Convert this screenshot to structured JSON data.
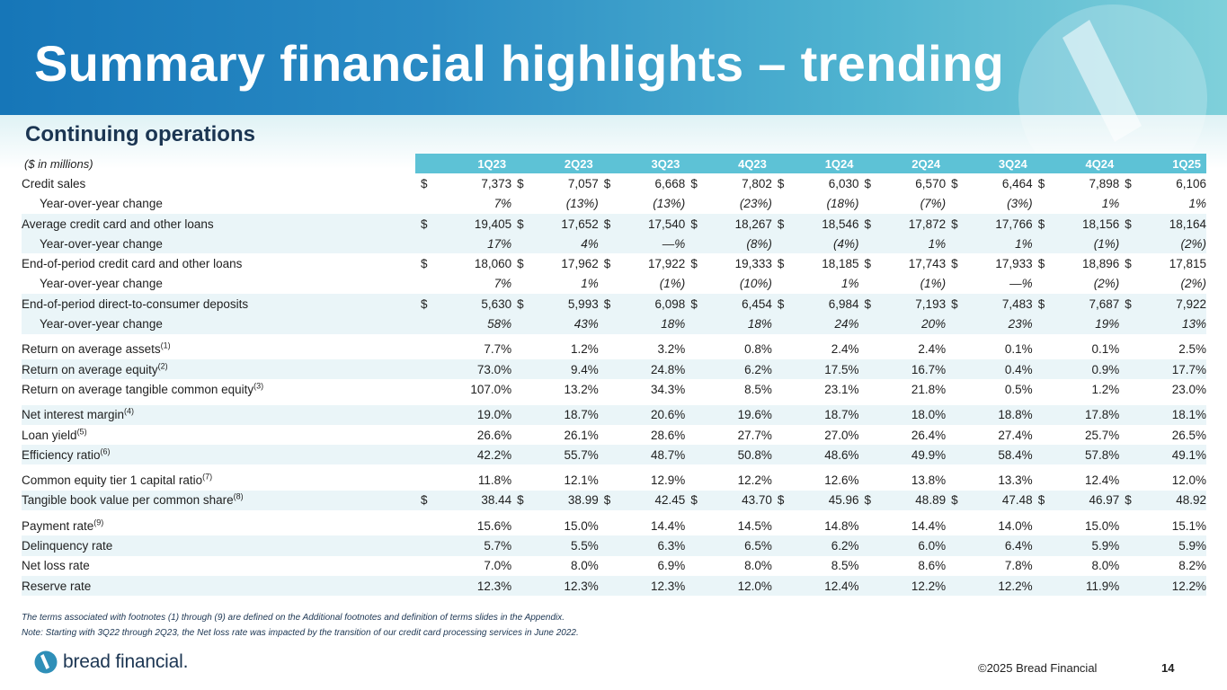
{
  "title": "Summary financial highlights – trending",
  "section": "Continuing operations",
  "units": "($ in millions)",
  "columns": [
    "1Q23",
    "2Q23",
    "3Q23",
    "4Q23",
    "1Q24",
    "2Q24",
    "3Q24",
    "4Q24",
    "1Q25"
  ],
  "rows": [
    {
      "label": "Credit sales",
      "sup": "",
      "sub": false,
      "shade": false,
      "dollar": true,
      "italic": false,
      "values": [
        "7,373",
        "7,057",
        "6,668",
        "7,802",
        "6,030",
        "6,570",
        "6,464",
        "7,898",
        "6,106"
      ]
    },
    {
      "label": "Year-over-year change",
      "sup": "",
      "sub": true,
      "shade": false,
      "dollar": false,
      "italic": true,
      "values": [
        "7%",
        "(13%)",
        "(13%)",
        "(23%)",
        "(18%)",
        "(7%)",
        "(3%)",
        "1%",
        "1%"
      ]
    },
    {
      "label": "Average credit card and other loans",
      "sup": "",
      "sub": false,
      "shade": true,
      "dollar": true,
      "italic": false,
      "values": [
        "19,405",
        "17,652",
        "17,540",
        "18,267",
        "18,546",
        "17,872",
        "17,766",
        "18,156",
        "18,164"
      ]
    },
    {
      "label": "Year-over-year change",
      "sup": "",
      "sub": true,
      "shade": true,
      "dollar": false,
      "italic": true,
      "values": [
        "17%",
        "4%",
        "—%",
        "(8%)",
        "(4%)",
        "1%",
        "1%",
        "(1%)",
        "(2%)"
      ]
    },
    {
      "label": "End-of-period credit card and other loans",
      "sup": "",
      "sub": false,
      "shade": false,
      "dollar": true,
      "italic": false,
      "values": [
        "18,060",
        "17,962",
        "17,922",
        "19,333",
        "18,185",
        "17,743",
        "17,933",
        "18,896",
        "17,815"
      ]
    },
    {
      "label": "Year-over-year change",
      "sup": "",
      "sub": true,
      "shade": false,
      "dollar": false,
      "italic": true,
      "values": [
        "7%",
        "1%",
        "(1%)",
        "(10%)",
        "1%",
        "(1%)",
        "—%",
        "(2%)",
        "(2%)"
      ]
    },
    {
      "label": "End-of-period direct-to-consumer deposits",
      "sup": "",
      "sub": false,
      "shade": true,
      "dollar": true,
      "italic": false,
      "values": [
        "5,630",
        "5,993",
        "6,098",
        "6,454",
        "6,984",
        "7,193",
        "7,483",
        "7,687",
        "7,922"
      ]
    },
    {
      "label": "Year-over-year change",
      "sup": "",
      "sub": true,
      "shade": true,
      "dollar": false,
      "italic": true,
      "values": [
        "58%",
        "43%",
        "18%",
        "18%",
        "24%",
        "20%",
        "23%",
        "19%",
        "13%"
      ]
    },
    {
      "gap": true
    },
    {
      "label": "Return on average assets",
      "sup": "(1)",
      "sub": false,
      "shade": false,
      "dollar": false,
      "italic": false,
      "values": [
        "7.7%",
        "1.2%",
        "3.2%",
        "0.8%",
        "2.4%",
        "2.4%",
        "0.1%",
        "0.1%",
        "2.5%"
      ]
    },
    {
      "label": "Return on average equity",
      "sup": "(2)",
      "sub": false,
      "shade": true,
      "dollar": false,
      "italic": false,
      "values": [
        "73.0%",
        "9.4%",
        "24.8%",
        "6.2%",
        "17.5%",
        "16.7%",
        "0.4%",
        "0.9%",
        "17.7%"
      ]
    },
    {
      "label": "Return on average tangible common equity",
      "sup": "(3)",
      "sub": false,
      "shade": false,
      "dollar": false,
      "italic": false,
      "values": [
        "107.0%",
        "13.2%",
        "34.3%",
        "8.5%",
        "23.1%",
        "21.8%",
        "0.5%",
        "1.2%",
        "23.0%"
      ]
    },
    {
      "gap": true
    },
    {
      "label": "Net interest margin",
      "sup": "(4)",
      "sub": false,
      "shade": true,
      "dollar": false,
      "italic": false,
      "values": [
        "19.0%",
        "18.7%",
        "20.6%",
        "19.6%",
        "18.7%",
        "18.0%",
        "18.8%",
        "17.8%",
        "18.1%"
      ]
    },
    {
      "label": "Loan yield",
      "sup": "(5)",
      "sub": false,
      "shade": false,
      "dollar": false,
      "italic": false,
      "values": [
        "26.6%",
        "26.1%",
        "28.6%",
        "27.7%",
        "27.0%",
        "26.4%",
        "27.4%",
        "25.7%",
        "26.5%"
      ]
    },
    {
      "label": "Efficiency ratio",
      "sup": "(6)",
      "sub": false,
      "shade": true,
      "dollar": false,
      "italic": false,
      "values": [
        "42.2%",
        "55.7%",
        "48.7%",
        "50.8%",
        "48.6%",
        "49.9%",
        "58.4%",
        "57.8%",
        "49.1%"
      ]
    },
    {
      "gap": true
    },
    {
      "label": "Common equity tier 1 capital ratio",
      "sup": "(7)",
      "sub": false,
      "shade": false,
      "dollar": false,
      "italic": false,
      "values": [
        "11.8%",
        "12.1%",
        "12.9%",
        "12.2%",
        "12.6%",
        "13.8%",
        "13.3%",
        "12.4%",
        "12.0%"
      ]
    },
    {
      "label": "Tangible book value per common share",
      "sup": "(8)",
      "sub": false,
      "shade": true,
      "dollar": true,
      "italic": false,
      "values": [
        "38.44",
        "38.99",
        "42.45",
        "43.70",
        "45.96",
        "48.89",
        "47.48",
        "46.97",
        "48.92"
      ]
    },
    {
      "gap": true
    },
    {
      "label": "Payment rate",
      "sup": "(9)",
      "sub": false,
      "shade": false,
      "dollar": false,
      "italic": false,
      "values": [
        "15.6%",
        "15.0%",
        "14.4%",
        "14.5%",
        "14.8%",
        "14.4%",
        "14.0%",
        "15.0%",
        "15.1%"
      ]
    },
    {
      "label": "Delinquency rate",
      "sup": "",
      "sub": false,
      "shade": true,
      "dollar": false,
      "italic": false,
      "values": [
        "5.7%",
        "5.5%",
        "6.3%",
        "6.5%",
        "6.2%",
        "6.0%",
        "6.4%",
        "5.9%",
        "5.9%"
      ]
    },
    {
      "label": "Net loss rate",
      "sup": "",
      "sub": false,
      "shade": false,
      "dollar": false,
      "italic": false,
      "values": [
        "7.0%",
        "8.0%",
        "6.9%",
        "8.0%",
        "8.5%",
        "8.6%",
        "7.8%",
        "8.0%",
        "8.2%"
      ]
    },
    {
      "label": "Reserve rate",
      "sup": "",
      "sub": false,
      "shade": true,
      "dollar": false,
      "italic": false,
      "values": [
        "12.3%",
        "12.3%",
        "12.3%",
        "12.0%",
        "12.4%",
        "12.2%",
        "12.2%",
        "11.9%",
        "12.2%"
      ]
    }
  ],
  "currency_symbol": "$",
  "notes": {
    "footnote": "The terms associated with footnotes (1) through (9) are defined on the Additional footnotes and definition of terms slides in the Appendix.",
    "note": "Note: Starting with 3Q22 through 2Q23, the Net loss rate was impacted by the transition of our credit card processing services in June 2022."
  },
  "footer": {
    "brand": "bread financial.",
    "copyright": "©2025 Bread Financial",
    "page": "14"
  },
  "colors": {
    "header_start": "#1676b8",
    "header_end": "#7fd0da",
    "column_header": "#5dc2d6",
    "row_shade": "#eaf5f8",
    "navy": "#1b3552"
  }
}
